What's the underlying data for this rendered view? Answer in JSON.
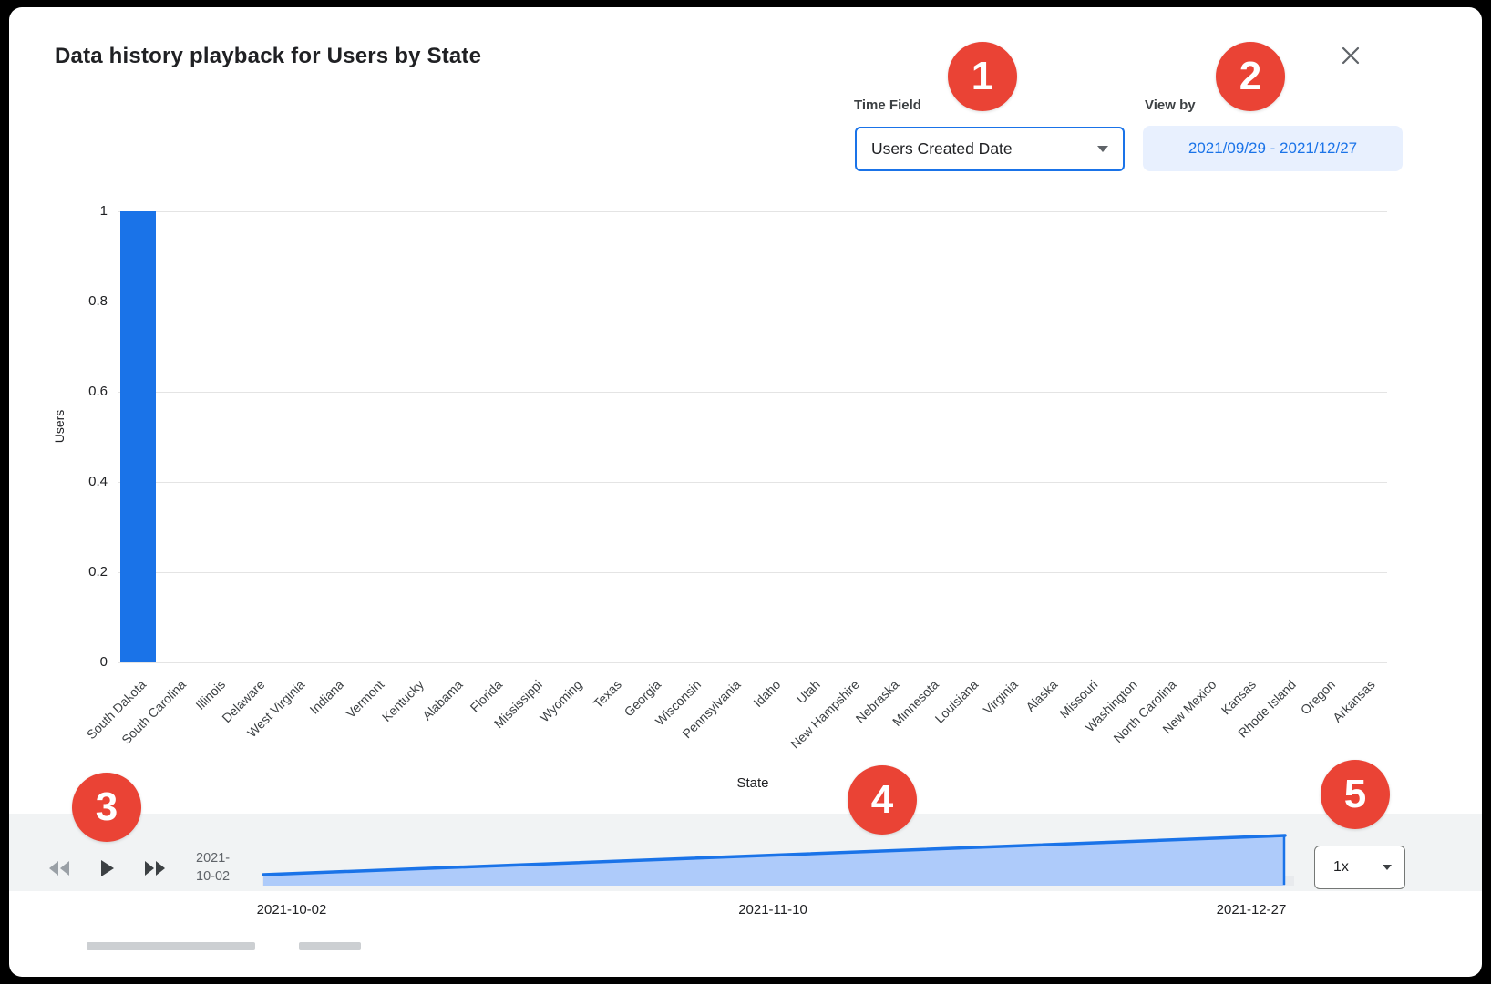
{
  "dialog": {
    "title": "Data history playback for Users by State"
  },
  "header": {
    "time_field": {
      "label": "Time Field",
      "value": "Users Created Date"
    },
    "view_by": {
      "label": "View by",
      "value": "2021/09/29 - 2021/12/27"
    }
  },
  "chart_data": {
    "type": "bar",
    "title": "Data history playback for Users by State",
    "xlabel": "State",
    "ylabel": "Users",
    "ylim": [
      0,
      1
    ],
    "yticks": [
      0,
      0.2,
      0.4,
      0.6,
      0.8,
      1
    ],
    "grid": true,
    "legend": "none",
    "bar_color": "#1a73e8",
    "categories": [
      "South Dakota",
      "South Carolina",
      "Illinois",
      "Delaware",
      "West Virginia",
      "Indiana",
      "Vermont",
      "Kentucky",
      "Alabama",
      "Florida",
      "Mississippi",
      "Wyoming",
      "Texas",
      "Georgia",
      "Wisconsin",
      "Pennsylvania",
      "Idaho",
      "Utah",
      "New Hampshire",
      "Nebraska",
      "Minnesota",
      "Louisiana",
      "Virginia",
      "Alaska",
      "Missouri",
      "Washington",
      "North Carolina",
      "New Mexico",
      "Kansas",
      "Rhode Island",
      "Oregon",
      "Arkansas"
    ],
    "values": [
      1,
      0,
      0,
      0,
      0,
      0,
      0,
      0,
      0,
      0,
      0,
      0,
      0,
      0,
      0,
      0,
      0,
      0,
      0,
      0,
      0,
      0,
      0,
      0,
      0,
      0,
      0,
      0,
      0,
      0,
      0,
      0
    ]
  },
  "playback": {
    "current_date": "2021-10-02",
    "speed": "1x",
    "timeline": {
      "type": "area",
      "trend": "linear-increasing",
      "x_labels": [
        "2021-10-02",
        "2021-11-10",
        "2021-12-27"
      ],
      "line_color": "#1a73e8",
      "fill_color": "#aecbfa",
      "track_color": "#e8eaed"
    }
  },
  "annotations": {
    "badge_color": "#ea4335",
    "badges": [
      "1",
      "2",
      "3",
      "4",
      "5"
    ]
  },
  "icons": {
    "close": "x",
    "time_field_dropdown": "caret-down",
    "speed_dropdown": "caret-down",
    "rewind": "double-left-triangles",
    "play": "right-triangle",
    "fast_forward": "double-right-triangles"
  }
}
